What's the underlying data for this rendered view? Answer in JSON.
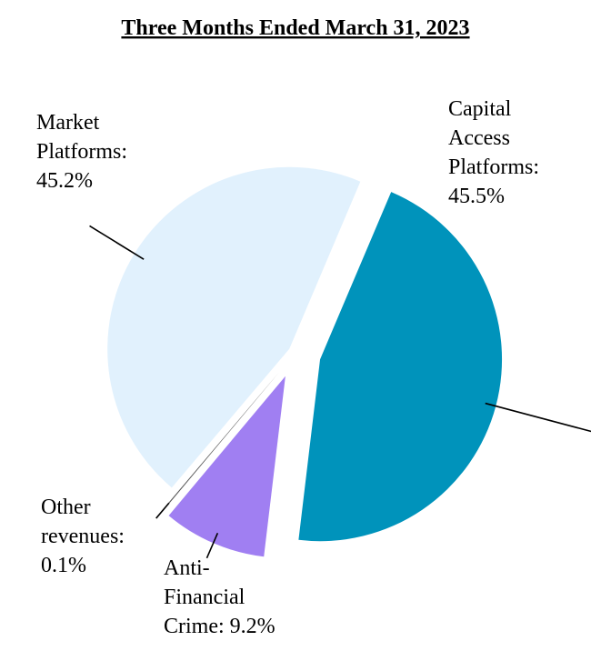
{
  "chart_data": {
    "type": "pie",
    "title": "Three Months Ended March 31, 2023",
    "unit": "%",
    "slices": [
      {
        "name": "Capital Access Platforms",
        "value": 45.5,
        "color": "#0093bb",
        "label_lines": [
          "Capital",
          "Access",
          "Platforms:",
          "45.5%"
        ]
      },
      {
        "name": "Anti-Financial Crime",
        "value": 9.2,
        "color": "#a07ff2",
        "label_lines": [
          "Anti-",
          "Financial",
          "Crime: 9.2%"
        ]
      },
      {
        "name": "Other revenues",
        "value": 0.1,
        "color": "#555555",
        "label_lines": [
          "Other",
          "revenues:",
          "0.1%"
        ]
      },
      {
        "name": "Market Platforms",
        "value": 45.2,
        "color": "#e1f1fd",
        "label_lines": [
          "Market",
          "Platforms:",
          "45.2%"
        ]
      }
    ],
    "exploded": true,
    "legend": "none"
  }
}
